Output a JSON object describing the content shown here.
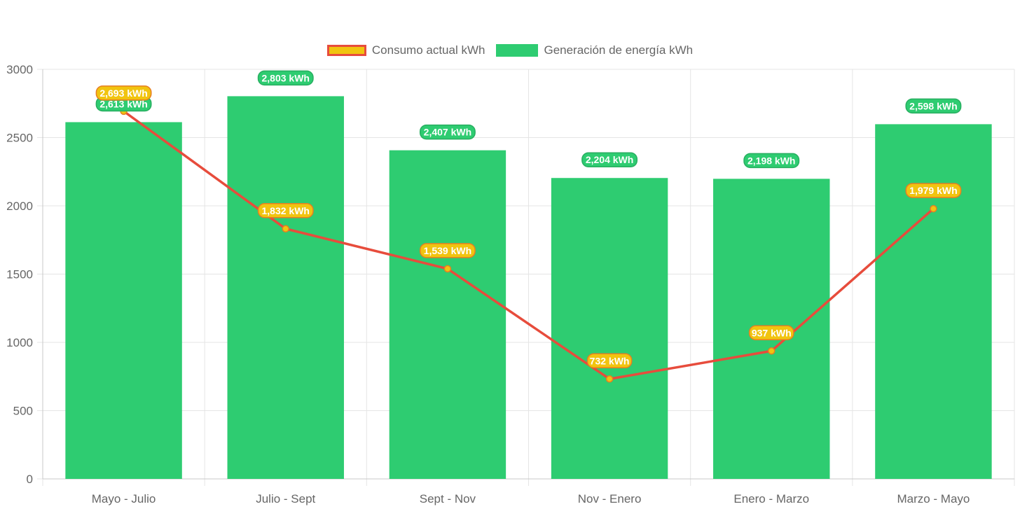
{
  "chart_data": {
    "type": "bar",
    "categories": [
      "Mayo - Julio",
      "Julio - Sept",
      "Sept - Nov",
      "Nov - Enero",
      "Enero - Marzo",
      "Marzo - Mayo"
    ],
    "series": [
      {
        "name": "Consumo actual kWh",
        "type": "line",
        "values": [
          2693,
          1832,
          1539,
          732,
          937,
          1979
        ],
        "labels": [
          "2,693 kWh",
          "1,832 kWh",
          "1,539 kWh",
          "732 kWh",
          "937 kWh",
          "1,979 kWh"
        ],
        "line_color": "#e74c3c",
        "fill_color": "#f1c40f"
      },
      {
        "name": "Generación de energía kWh",
        "type": "bar",
        "values": [
          2613,
          2803,
          2407,
          2204,
          2198,
          2598
        ],
        "labels": [
          "2,613 kWh",
          "2,803 kWh",
          "2,407 kWh",
          "2,204 kWh",
          "2,198 kWh",
          "2,598 kWh"
        ],
        "color": "#2ecc71"
      }
    ],
    "yticks": [
      "0",
      "500",
      "1000",
      "1500",
      "2000",
      "2500",
      "3000"
    ],
    "ylim": [
      0,
      3000
    ],
    "grid": true,
    "legend_position": "top-center",
    "title": "",
    "xlabel": "",
    "ylabel": ""
  }
}
